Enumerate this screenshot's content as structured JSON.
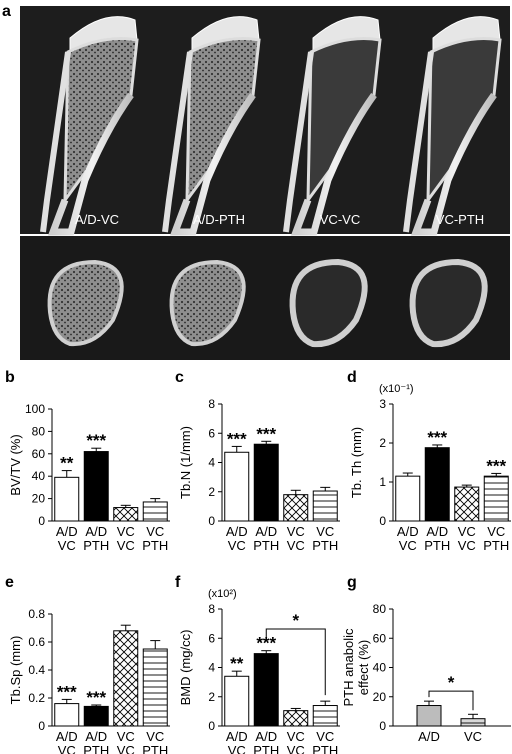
{
  "figure": {
    "panel_a": {
      "label": "a",
      "samples": [
        "A/D-VC",
        "A/D-PTH",
        "VC-VC",
        "VC-PTH"
      ]
    },
    "group_labels": {
      "AD_VC": [
        "A/D",
        "VC"
      ],
      "AD_PTH": [
        "A/D",
        "PTH"
      ],
      "VC_VC": [
        "VC",
        "VC"
      ],
      "VC_PTH": [
        "VC",
        "PTH"
      ]
    }
  },
  "chart_data": [
    {
      "panel": "b",
      "type": "bar",
      "ylabel": "BV/TV (%)",
      "multiplier": "",
      "ylim": [
        0,
        100
      ],
      "yticks": [
        0,
        20,
        40,
        60,
        80,
        100
      ],
      "categories": [
        "A/D VC",
        "A/D PTH",
        "VC VC",
        "VC PTH"
      ],
      "values": [
        39,
        62,
        12,
        17
      ],
      "errors": [
        6,
        3,
        2,
        3
      ],
      "fills": [
        "white",
        "black",
        "cross",
        "lines"
      ],
      "stars": [
        "**",
        "***",
        "",
        ""
      ]
    },
    {
      "panel": "c",
      "type": "bar",
      "ylabel": "Tb.N (1/mm)",
      "multiplier": "",
      "ylim": [
        0,
        8
      ],
      "yticks": [
        0,
        2,
        4,
        6,
        8
      ],
      "categories": [
        "A/D VC",
        "A/D PTH",
        "VC VC",
        "VC PTH"
      ],
      "values": [
        4.7,
        5.25,
        1.8,
        2.05
      ],
      "errors": [
        0.4,
        0.2,
        0.3,
        0.25
      ],
      "fills": [
        "white",
        "black",
        "cross",
        "lines"
      ],
      "stars": [
        "***",
        "***",
        "",
        ""
      ]
    },
    {
      "panel": "d",
      "type": "bar",
      "ylabel": "Tb. Th (mm)",
      "multiplier": "(x10⁻¹)",
      "ylim": [
        0,
        3
      ],
      "yticks": [
        0,
        1,
        2,
        3
      ],
      "categories": [
        "A/D VC",
        "A/D PTH",
        "VC VC",
        "VC PTH"
      ],
      "values": [
        1.15,
        1.88,
        0.87,
        1.15
      ],
      "errors": [
        0.08,
        0.07,
        0.05,
        0.07
      ],
      "fills": [
        "white",
        "black",
        "cross",
        "lines"
      ],
      "stars": [
        "",
        "***",
        "",
        "***"
      ]
    },
    {
      "panel": "e",
      "type": "bar",
      "ylabel": "Tb.Sp (mm)",
      "multiplier": "",
      "ylim": [
        0,
        0.8
      ],
      "yticks": [
        0,
        0.2,
        0.4,
        0.6,
        0.8
      ],
      "categories": [
        "A/D VC",
        "A/D PTH",
        "VC VC",
        "VC PTH"
      ],
      "values": [
        0.16,
        0.14,
        0.68,
        0.55
      ],
      "errors": [
        0.03,
        0.01,
        0.04,
        0.06
      ],
      "fills": [
        "white",
        "black",
        "cross",
        "lines"
      ],
      "stars": [
        "***",
        "***",
        "",
        ""
      ]
    },
    {
      "panel": "f",
      "type": "bar",
      "ylabel": "BMD (mg/cc)",
      "multiplier": "(x10²)",
      "ylim": [
        0,
        8
      ],
      "yticks": [
        0,
        2,
        4,
        6,
        8
      ],
      "categories": [
        "A/D VC",
        "A/D PTH",
        "VC VC",
        "VC PTH"
      ],
      "values": [
        3.4,
        4.95,
        1.05,
        1.4
      ],
      "errors": [
        0.35,
        0.2,
        0.15,
        0.3
      ],
      "fills": [
        "white",
        "black",
        "cross",
        "lines"
      ],
      "stars": [
        "**",
        "***",
        "",
        ""
      ],
      "comparison": {
        "from": 1,
        "to": 3,
        "label": "*"
      }
    },
    {
      "panel": "g",
      "type": "bar",
      "ylabel": "PTH anabolic effect (%)",
      "multiplier": "",
      "ylim": [
        0,
        80
      ],
      "yticks": [
        0,
        20,
        40,
        60,
        80
      ],
      "categories": [
        "A/D",
        "VC"
      ],
      "values": [
        14,
        5
      ],
      "errors": [
        3,
        3
      ],
      "fills": [
        "gray",
        "lines"
      ],
      "stars": [
        "",
        ""
      ],
      "comparison": {
        "from": 0,
        "to": 1,
        "label": "*"
      }
    }
  ]
}
